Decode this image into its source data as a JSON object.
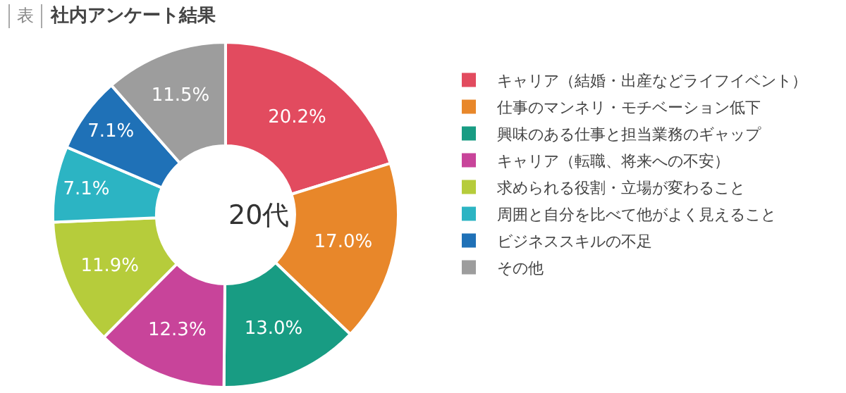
{
  "chart_data": {
    "type": "donut",
    "subtitle": "表",
    "title": "社内アンケート結果",
    "categories": [
      "キャリア（結婚・出産などライフイベント）",
      "仕事のマンネリ・モチベーション低下",
      "興味のある仕事と担当業務のギャップ",
      "キャリア（転職、将来への不安）",
      "求められる役割・立場が変わること",
      "周囲と自分を比べて他がよく見えること",
      "ビジネススキルの不足",
      "その他"
    ],
    "values": [
      20.2,
      17.0,
      13.0,
      12.3,
      11.9,
      7.1,
      7.1,
      11.5
    ],
    "value_labels": [
      "20.2%",
      "17.0%",
      "13.0%",
      "12.3%",
      "11.9%",
      "7.1%",
      "7.1%",
      "11.5%"
    ],
    "colors": [
      "#e24b5f",
      "#e8872a",
      "#189c83",
      "#c8449a",
      "#b6cc3b",
      "#2cb4c3",
      "#1f71b7",
      "#9d9d9d"
    ],
    "annotations": [
      "20代"
    ],
    "legend": "right"
  }
}
